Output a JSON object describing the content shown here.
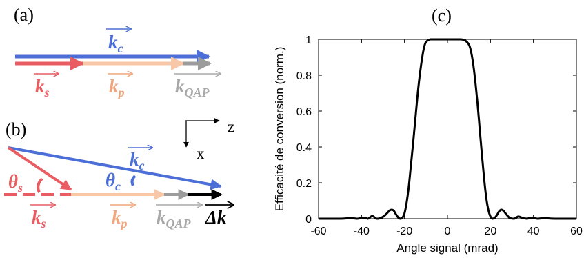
{
  "colors": {
    "kc": "#4b6fd6",
    "ks": "#e85c62",
    "kp": "#f7c7a8",
    "kp_label": "#f0a57c",
    "kqap": "#9c9c9c",
    "kqap_label": "#a8a8a8",
    "dk": "#000000",
    "axis": "#000000"
  },
  "panel_a": {
    "label": "(a)",
    "kc": {
      "base": "k",
      "sub": "c"
    },
    "ks": {
      "base": "k",
      "sub": "s"
    },
    "kp": {
      "base": "k",
      "sub": "p"
    },
    "kqap": {
      "base": "k",
      "sub": "QAP"
    }
  },
  "panel_b": {
    "label": "(b)",
    "axis_z": "z",
    "axis_x": "x",
    "kc": {
      "base": "k",
      "sub": "c"
    },
    "ks": {
      "base": "k",
      "sub": "s"
    },
    "kp": {
      "base": "k",
      "sub": "p"
    },
    "kqap": {
      "base": "k",
      "sub": "QAP"
    },
    "dk": "Δk",
    "theta_s": {
      "base": "θ",
      "sub": "s"
    },
    "theta_c": {
      "base": "θ",
      "sub": "c"
    }
  },
  "panel_c": {
    "label": "(c)"
  },
  "chart_data": {
    "type": "line",
    "title": "",
    "xlabel": "Angle signal (mrad)",
    "ylabel": "Efficacité de conversion (norm.)",
    "xlim": [
      -60,
      60
    ],
    "ylim": [
      0,
      1
    ],
    "xticks": [
      -60,
      -40,
      -20,
      0,
      20,
      40,
      60
    ],
    "yticks": [
      0,
      0.2,
      0.4,
      0.6,
      0.8,
      1
    ],
    "xtick_labels": [
      "-60",
      "-40",
      "-20",
      "0",
      "20",
      "40",
      "60"
    ],
    "ytick_labels": [
      "0",
      "0.2",
      "0.4",
      "0.6",
      "0.8",
      "1"
    ],
    "grid": false,
    "series": [
      {
        "color": "#000000",
        "x": [
          -60,
          -50,
          -45,
          -42,
          -39,
          -37,
          -35,
          -33,
          -31,
          -29,
          -27,
          -26,
          -25,
          -24,
          -23,
          -22,
          -21,
          -20,
          -19,
          -18,
          -17,
          -16,
          -15,
          -14,
          -13,
          -12,
          -11,
          -10,
          -8,
          -6,
          -4,
          -2,
          0,
          2,
          4,
          6,
          8,
          10,
          11,
          12,
          13,
          14,
          15,
          16,
          17,
          18,
          19,
          20,
          21,
          22,
          23,
          24,
          25,
          26,
          27,
          29,
          31,
          33,
          35,
          37,
          39,
          42,
          45,
          50,
          60
        ],
        "y": [
          0,
          0,
          0.003,
          0.0,
          0.006,
          0.0,
          0.015,
          0.0,
          0.004,
          0.02,
          0.045,
          0.05,
          0.045,
          0.025,
          0.008,
          0.0,
          0.005,
          0.03,
          0.09,
          0.18,
          0.3,
          0.42,
          0.55,
          0.68,
          0.79,
          0.88,
          0.95,
          0.985,
          1.0,
          1.0,
          1.0,
          1.0,
          1.0,
          1.0,
          1.0,
          1.0,
          0.995,
          0.97,
          0.93,
          0.86,
          0.76,
          0.64,
          0.5,
          0.36,
          0.23,
          0.12,
          0.05,
          0.012,
          0.0,
          0.005,
          0.02,
          0.04,
          0.05,
          0.045,
          0.03,
          0.004,
          0.0,
          0.012,
          0.004,
          0.0,
          0.006,
          0.0,
          0.003,
          0,
          0
        ]
      }
    ]
  }
}
